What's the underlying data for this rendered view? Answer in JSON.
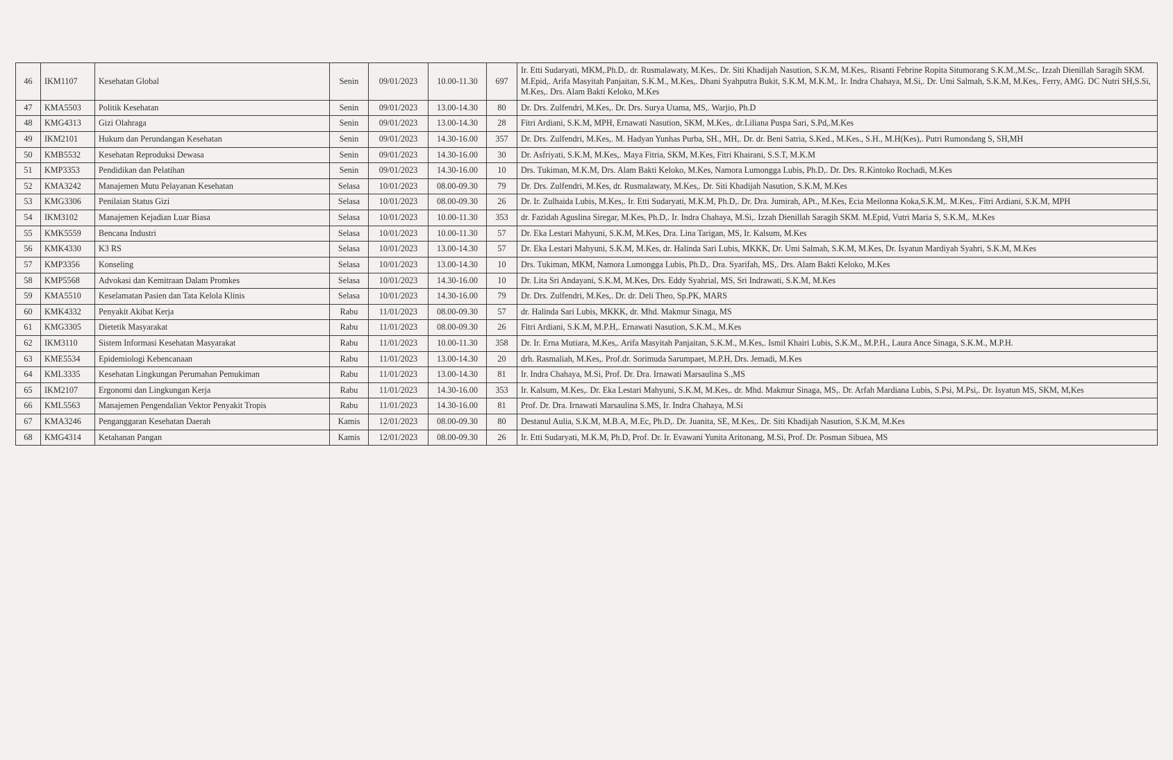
{
  "columns": [
    "no",
    "code",
    "course",
    "day",
    "date",
    "time",
    "count",
    "lecturers"
  ],
  "rows": [
    {
      "no": "46",
      "code": "IKM1107",
      "course": "Kesehatan Global",
      "day": "Senin",
      "date": "09/01/2023",
      "time": "10.00-11.30",
      "count": "697",
      "lecturers": "Ir. Etti Sudaryati, MKM,.Ph.D,. dr. Rusmalawaty, M.Kes,. Dr. Siti Khadijah Nasution, S.K.M, M.Kes,. Risanti Febrine Ropita Situmorang S.K.M.,M.Sc,. Izzah Dienillah Saragih SKM. M.Epid,. Arifa Masyitah Panjaitan, S.K.M., M.Kes,. Dhani Syahputra Bukit, S.K.M, M.K.M,. Ir. Indra Chahaya, M.Si,. Dr. Umi Salmah, S.K.M, M.Kes,. Ferry, AMG. DC Nutri SH,S.Si, M.Kes,. Drs. Alam Bakti Keloko, M.Kes"
    },
    {
      "no": "47",
      "code": "KMA5503",
      "course": "Politik Kesehatan",
      "day": "Senin",
      "date": "09/01/2023",
      "time": "13.00-14.30",
      "count": "80",
      "lecturers": "Dr. Drs. Zulfendri, M.Kes,. Dr. Drs. Surya Utama, MS,. Warjio, Ph.D"
    },
    {
      "no": "48",
      "code": "KMG4313",
      "course": "Gizi Olahraga",
      "day": "Senin",
      "date": "09/01/2023",
      "time": "13.00-14.30",
      "count": "28",
      "lecturers": "Fitri Ardiani, S.K.M, MPH, Ernawati Nasution, SKM, M.Kes,.  dr.Liliana Puspa Sari, S.Pd,.M.Kes"
    },
    {
      "no": "49",
      "code": "IKM2101",
      "course": "Hukum dan Perundangan Kesehatan",
      "day": "Senin",
      "date": "09/01/2023",
      "time": "14.30-16.00",
      "count": "357",
      "lecturers": "Dr. Drs. Zulfendri, M.Kes,. M. Hadyan Yunhas  Purba, SH., MH,. Dr. dr. Beni Satria, S.Ked., M.Kes., S.H., M.H(Kes),. Putri Rumondang S, SH,MH"
    },
    {
      "no": "50",
      "code": "KMB5532",
      "course": "Kesehatan Reproduksi Dewasa",
      "day": "Senin",
      "date": "09/01/2023",
      "time": "14.30-16.00",
      "count": "30",
      "lecturers": "Dr. Asfriyati, S.K.M, M.Kes,. Maya Fitria, SKM, M.Kes,  Fitri Khairani, S.S.T, M.K.M"
    },
    {
      "no": "51",
      "code": "KMP3353",
      "course": "Pendidikan dan Pelatihan",
      "day": "Senin",
      "date": "09/01/2023",
      "time": "14.30-16.00",
      "count": "10",
      "lecturers": "Drs. Tukiman, M.K.M, Drs. Alam Bakti Keloko, M.Kes, Namora  Lumongga Lubis, Ph.D,. Dr. Drs. R.Kintoko Rochadi, M.Kes"
    },
    {
      "no": "52",
      "code": "KMA3242",
      "course": "Manajemen Mutu Pelayanan Kesehatan",
      "day": "Selasa",
      "date": "10/01/2023",
      "time": "08.00-09.30",
      "count": "79",
      "lecturers": "Dr. Drs. Zulfendri, M.Kes,  dr. Rusmalawaty, M.Kes,. Dr. Siti Khadijah Nasution, S.K.M, M.Kes"
    },
    {
      "no": "53",
      "code": "KMG3306",
      "course": "Penilaian Status Gizi",
      "day": "Selasa",
      "date": "10/01/2023",
      "time": "08.00-09.30",
      "count": "26",
      "lecturers": "Dr. Ir. Zulhaida Lubis, M.Kes,. Ir. Etti Sudaryati, M.K.M, Ph.D,. Dr. Dra. Jumirah, APt., M.Kes, Ecia Meilonna Koka,S.K.M,. M.Kes,. Fitri Ardiani, S.K.M, MPH"
    },
    {
      "no": "54",
      "code": "IKM3102",
      "course": "Manajemen Kejadian Luar Biasa",
      "day": "Selasa",
      "date": "10/01/2023",
      "time": "10.00-11.30",
      "count": "353",
      "lecturers": "dr. Fazidah Aguslina Siregar, M.Kes, Ph.D,. Ir. Indra Chahaya, M.Si,. Izzah Dienillah Saragih SKM. M.Epid,  Vutri Maria S, S.K.M,. M.Kes"
    },
    {
      "no": "55",
      "code": "KMK5559",
      "course": "Bencana Industri",
      "day": "Selasa",
      "date": "10/01/2023",
      "time": "10.00-11.30",
      "count": "57",
      "lecturers": "Dr. Eka Lestari Mahyuni, S.K.M, M.Kes, Dra. Lina Tarigan, MS, Ir. Kalsum, M.Kes"
    },
    {
      "no": "56",
      "code": "KMK4330",
      "course": "K3 RS",
      "day": "Selasa",
      "date": "10/01/2023",
      "time": "13.00-14.30",
      "count": "57",
      "lecturers": "Dr. Eka Lestari Mahyuni, S.K.M, M.Kes, dr. Halinda Sari Lubis, MKKK,  Dr. Umi Salmah, S.K.M, M.Kes, Dr. Isyatun Mardiyah Syahri, S.K.M, M.Kes"
    },
    {
      "no": "57",
      "code": "KMP3356",
      "course": "Konseling",
      "day": "Selasa",
      "date": "10/01/2023",
      "time": "13.00-14.30",
      "count": "10",
      "lecturers": "Drs. Tukiman, MKM, Namora  Lumongga Lubis, Ph.D,. Dra. Syarifah, MS,. Drs. Alam Bakti Keloko, M.Kes"
    },
    {
      "no": "58",
      "code": "KMP5568",
      "course": "Advokasi dan Kemitraan Dalam Promkes",
      "day": "Selasa",
      "date": "10/01/2023",
      "time": "14.30-16.00",
      "count": "10",
      "lecturers": "Dr. Lita Sri Andayani, S.K.M, M.Kes, Drs. Eddy Syahrial, MS, Sri Indrawati, S.K.M, M.Kes"
    },
    {
      "no": "59",
      "code": "KMA5510",
      "course": "Keselamatan Pasien dan Tata Kelola Klinis",
      "day": "Selasa",
      "date": "10/01/2023",
      "time": "14.30-16.00",
      "count": "79",
      "lecturers": "Dr. Drs. Zulfendri, M.Kes,. Dr. dr. Deli Theo, Sp.PK, MARS"
    },
    {
      "no": "60",
      "code": "KMK4332",
      "course": "Penyakit Akibat Kerja",
      "day": "Rabu",
      "date": "11/01/2023",
      "time": "08.00-09.30",
      "count": "57",
      "lecturers": "dr. Halinda Sari Lubis, MKKK, dr. Mhd. Makmur Sinaga, MS"
    },
    {
      "no": "61",
      "code": "KMG3305",
      "course": "Dietetik Masyarakat",
      "day": "Rabu",
      "date": "11/01/2023",
      "time": "08.00-09.30",
      "count": "26",
      "lecturers": "Fitri Ardiani, S.K.M, M.P.H,. Ernawati Nasution, S.K.M., M.Kes"
    },
    {
      "no": "62",
      "code": "IKM3110",
      "course": "Sistem Informasi Kesehatan Masyarakat",
      "day": "Rabu",
      "date": "11/01/2023",
      "time": "10.00-11.30",
      "count": "358",
      "lecturers": "Dr. Ir. Erna Mutiara, M.Kes,. Arifa Masyitah Panjaitan, S.K.M., M.Kes,.  Ismil Khairi Lubis, S.K.M., M.P.H., Laura Ance Sinaga, S.K.M., M.P.H."
    },
    {
      "no": "63",
      "code": "KME5534",
      "course": "Epidemiologi Kebencanaan",
      "day": "Rabu",
      "date": "11/01/2023",
      "time": "13.00-14.30",
      "count": "20",
      "lecturers": "drh. Rasmaliah, M.Kes,. Prof.dr. Sorimuda Sarumpaet, M.P.H, Drs. Jemadi, M.Kes"
    },
    {
      "no": "64",
      "code": "KML3335",
      "course": "Kesehatan Lingkungan Perumahan Pemukiman",
      "day": "Rabu",
      "date": "11/01/2023",
      "time": "13.00-14.30",
      "count": "81",
      "lecturers": "Ir. Indra Chahaya, M.Si, Prof. Dr. Dra. Irnawati Marsaulina S.,MS"
    },
    {
      "no": "65",
      "code": "IKM2107",
      "course": "Ergonomi dan Lingkungan Kerja",
      "day": "Rabu",
      "date": "11/01/2023",
      "time": "14.30-16.00",
      "count": "353",
      "lecturers": "Ir. Kalsum, M.Kes,. Dr. Eka Lestari Mahyuni, S.K.M, M.Kes,. dr. Mhd. Makmur Sinaga, MS,. Dr. Arfah Mardiana Lubis, S.Psi, M.Psi,. Dr. Isyatun MS, SKM, M,Kes"
    },
    {
      "no": "66",
      "code": "KML5563",
      "course": "Manajemen Pengendalian Vektor Penyakit Tropis",
      "day": "Rabu",
      "date": "11/01/2023",
      "time": "14.30-16.00",
      "count": "81",
      "lecturers": "Prof. Dr. Dra. Irnawati Marsaulina S.MS, Ir. Indra Chahaya, M.Si"
    },
    {
      "no": "67",
      "code": "KMA3246",
      "course": "Penganggaran Kesehatan Daerah",
      "day": "Kamis",
      "date": "12/01/2023",
      "time": "08.00-09.30",
      "count": "80",
      "lecturers": "Destanul Aulia, S.K.M, M.B.A, M.Ec, Ph.D,. Dr. Juanita, SE, M.Kes,. Dr. Siti Khadijah Nasution, S.K.M, M.Kes"
    },
    {
      "no": "68",
      "code": "KMG4314",
      "course": "Ketahanan Pangan",
      "day": "Kamis",
      "date": "12/01/2023",
      "time": "08.00-09.30",
      "count": "26",
      "lecturers": "Ir. Etti Sudaryati, M.K.M, Ph.D,  Prof. Dr. Ir. Evawani Yunita Aritonang, M.Si, Prof. Dr. Posman Sibuea, MS"
    }
  ]
}
